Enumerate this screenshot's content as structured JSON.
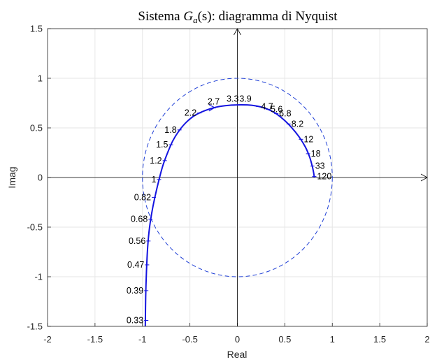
{
  "chart_data": {
    "type": "line",
    "title": "Sistema G_a(s): diagramma di Nyquist",
    "title_parts": {
      "prefix": "Sistema ",
      "func": "G",
      "sub": "a",
      "arg": "(s)",
      "suffix": ": diagramma di Nyquist"
    },
    "xlabel": "Real",
    "ylabel": "Imag",
    "xlim": [
      -2,
      2
    ],
    "ylim": [
      -1.5,
      1.5
    ],
    "xticks": [
      "-2",
      "-1.5",
      "-1",
      "-0.5",
      "0",
      "0.5",
      "1",
      "1.5",
      "2"
    ],
    "yticks": [
      "1.5",
      "1",
      "0.5",
      "0",
      "-0.5",
      "-1",
      "-1.5"
    ],
    "grid": true,
    "unit_circle": {
      "center": [
        0,
        0
      ],
      "radius": 1,
      "style": "dashed",
      "color": "#1f3fd6"
    },
    "series": [
      {
        "color": "#1414e0",
        "points": [
          [
            -0.97,
            -1.5
          ],
          [
            -0.966,
            -1.2
          ],
          [
            -0.958,
            -0.95
          ],
          [
            -0.945,
            -0.7
          ],
          [
            -0.925,
            -0.5
          ],
          [
            -0.895,
            -0.32
          ],
          [
            -0.86,
            -0.16
          ],
          [
            -0.825,
            -0.02
          ],
          [
            -0.785,
            0.12
          ],
          [
            -0.735,
            0.25
          ],
          [
            -0.68,
            0.37
          ],
          [
            -0.615,
            0.47
          ],
          [
            -0.54,
            0.555
          ],
          [
            -0.45,
            0.625
          ],
          [
            -0.34,
            0.675
          ],
          [
            -0.22,
            0.71
          ],
          [
            -0.09,
            0.727
          ],
          [
            0.03,
            0.732
          ],
          [
            0.15,
            0.728
          ],
          [
            0.27,
            0.705
          ],
          [
            0.38,
            0.66
          ],
          [
            0.48,
            0.59
          ],
          [
            0.57,
            0.505
          ],
          [
            0.65,
            0.41
          ],
          [
            0.715,
            0.31
          ],
          [
            0.76,
            0.21
          ],
          [
            0.79,
            0.11
          ],
          [
            0.805,
            0.04
          ],
          [
            0.81,
            0.0
          ]
        ]
      }
    ],
    "frequency_labels": [
      {
        "text": "0.33",
        "x": -0.96,
        "y": -1.44
      },
      {
        "text": "0.39",
        "x": -0.96,
        "y": -1.14
      },
      {
        "text": "0.47",
        "x": -0.951,
        "y": -0.88
      },
      {
        "text": "0.56",
        "x": -0.937,
        "y": -0.64
      },
      {
        "text": "0.68",
        "x": -0.915,
        "y": -0.42
      },
      {
        "text": "0.82",
        "x": -0.88,
        "y": -0.2
      },
      {
        "text": "1",
        "x": -0.825,
        "y": -0.02
      },
      {
        "text": "1.2",
        "x": -0.765,
        "y": 0.17
      },
      {
        "text": "1.5",
        "x": -0.7,
        "y": 0.33
      },
      {
        "text": "1.8",
        "x": -0.61,
        "y": 0.48
      },
      {
        "text": "2.2",
        "x": -0.4,
        "y": 0.65
      },
      {
        "text": "2.7",
        "x": -0.25,
        "y": 0.7
      },
      {
        "text": "3.3",
        "x": -0.05,
        "y": 0.728
      },
      {
        "text": "3.9",
        "x": 0.085,
        "y": 0.73
      },
      {
        "text": "4.7",
        "x": 0.22,
        "y": 0.715
      },
      {
        "text": "5.6",
        "x": 0.32,
        "y": 0.688
      },
      {
        "text": "6.8",
        "x": 0.41,
        "y": 0.645
      },
      {
        "text": "8.2",
        "x": 0.54,
        "y": 0.54
      },
      {
        "text": "12",
        "x": 0.67,
        "y": 0.385
      },
      {
        "text": "18",
        "x": 0.745,
        "y": 0.24
      },
      {
        "text": "33",
        "x": 0.79,
        "y": 0.115
      },
      {
        "text": "120",
        "x": 0.81,
        "y": 0.01
      }
    ],
    "arrow": {
      "x": -0.24,
      "y": 0.705,
      "direction": "right"
    }
  }
}
